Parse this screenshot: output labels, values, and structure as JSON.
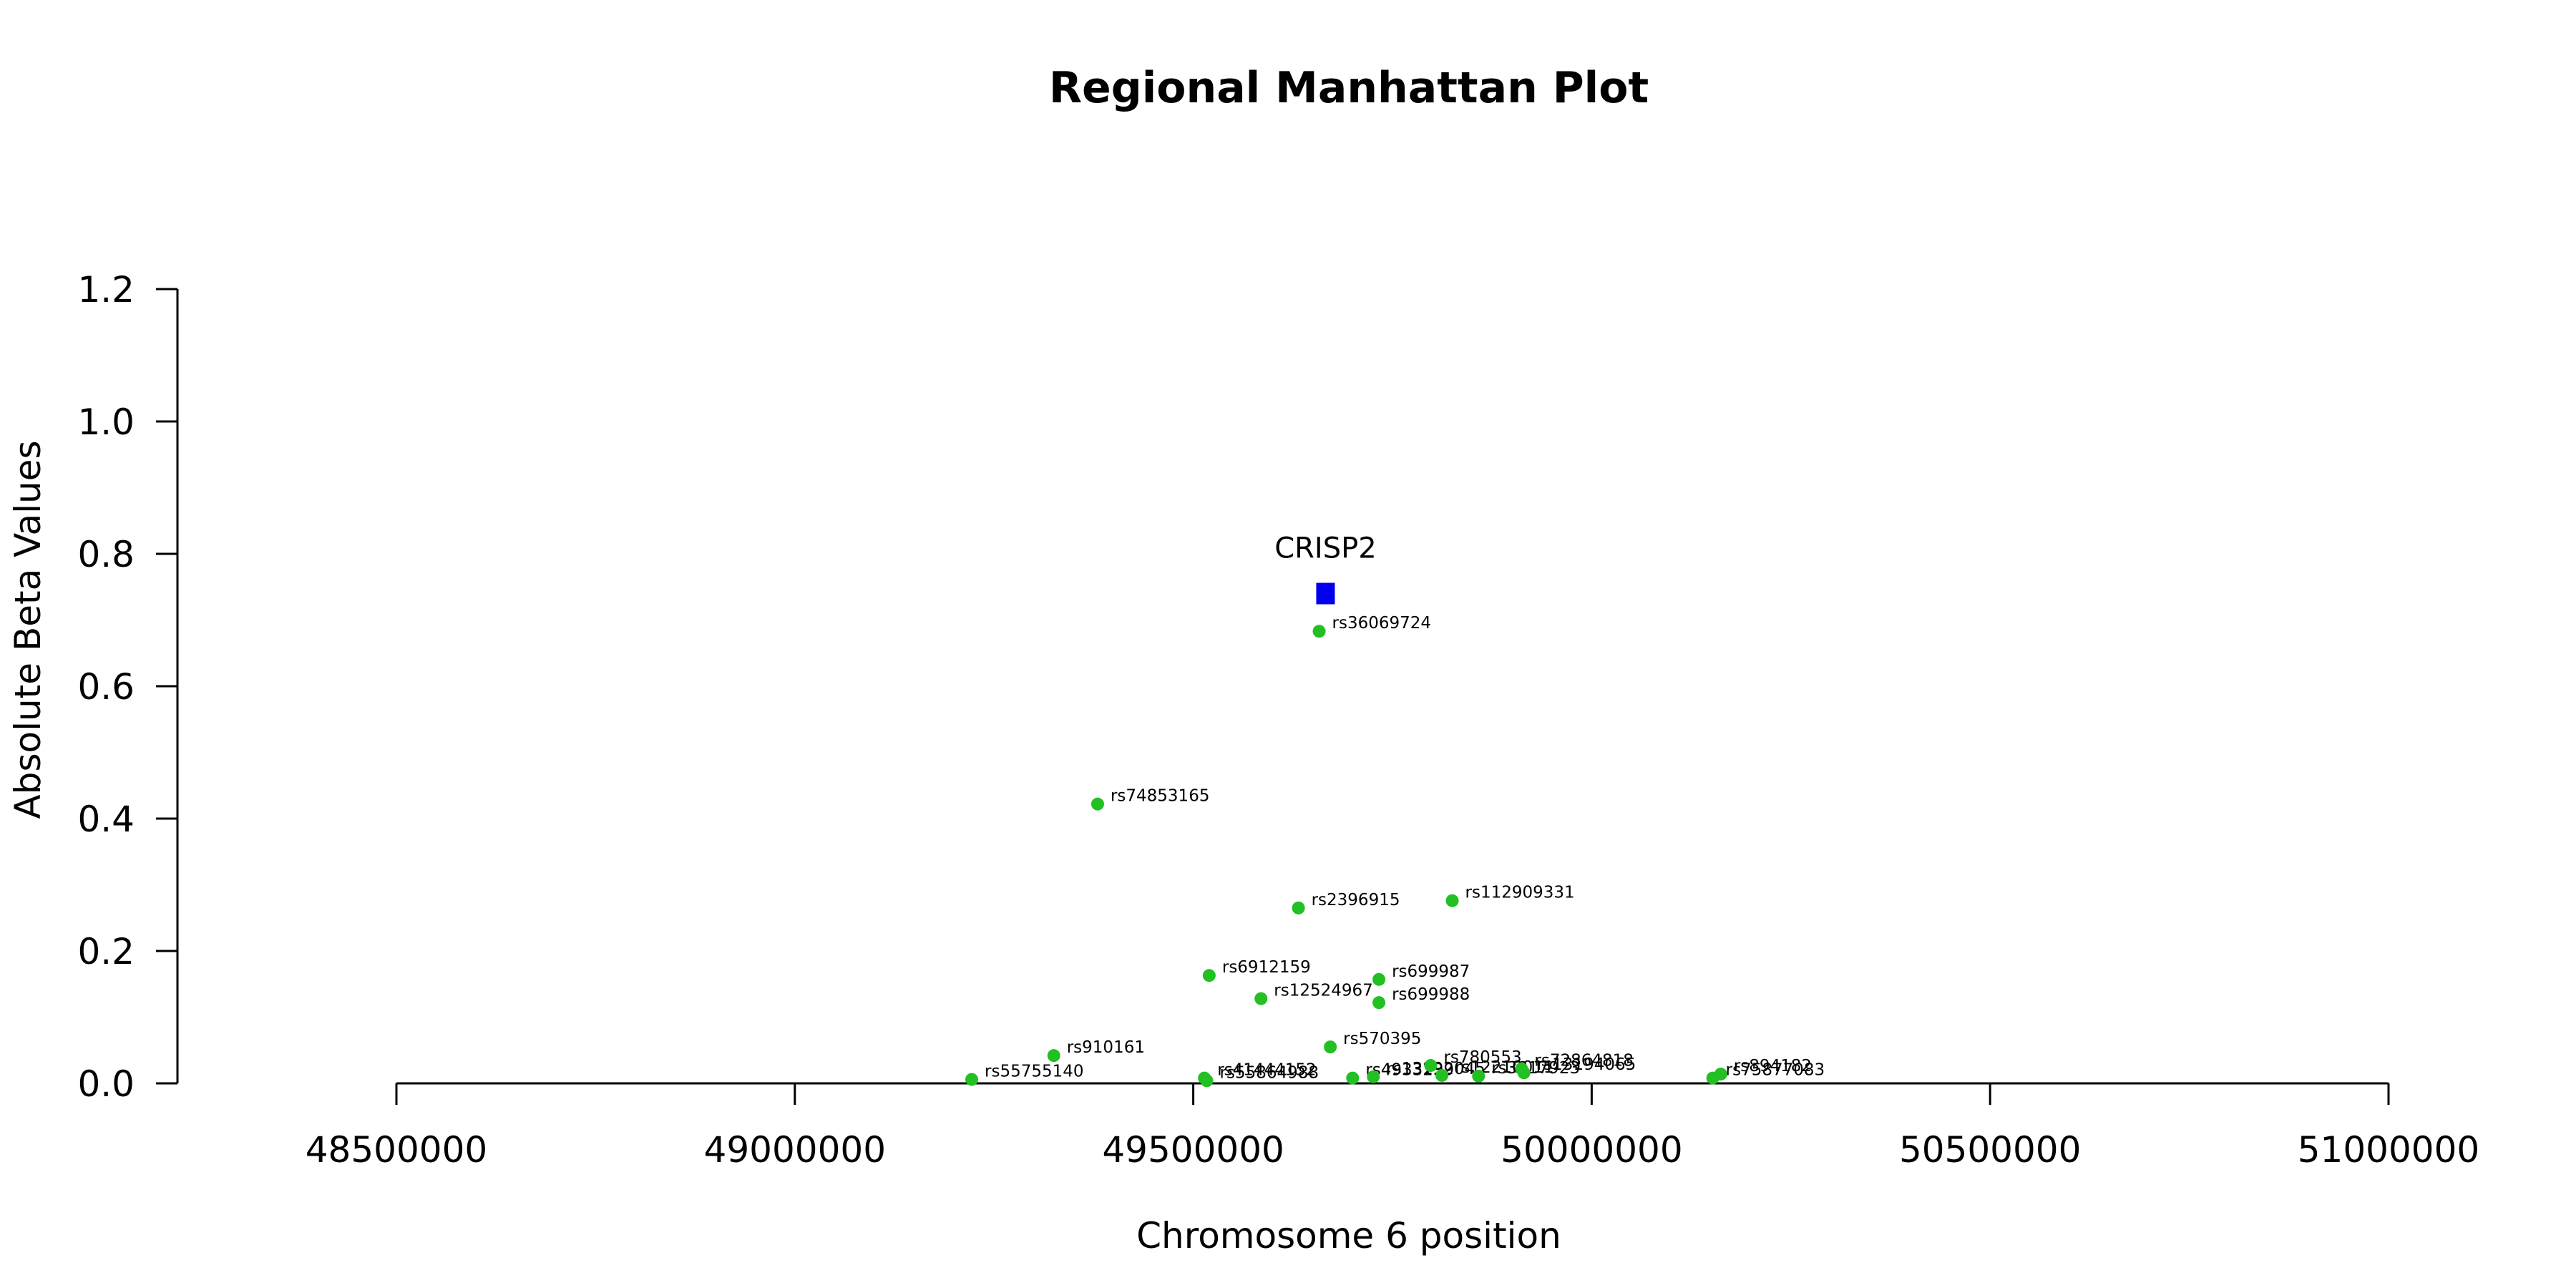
{
  "chart_data": {
    "type": "scatter",
    "title": "Regional Manhattan Plot",
    "xlabel": "Chromosome 6 position",
    "ylabel": "Absolute Beta Values",
    "xlim": [
      48500000,
      51000000
    ],
    "ylim": [
      0,
      1.2
    ],
    "x_ticks": [
      "48500000",
      "49000000",
      "49500000",
      "50000000",
      "50500000",
      "51000000"
    ],
    "y_ticks": [
      "0.0",
      "0.2",
      "0.4",
      "0.6",
      "0.8",
      "1.0",
      "1.2"
    ],
    "grid": false,
    "colors": {
      "snp": "#22c022",
      "gene": "#0000ee",
      "axis": "#000000"
    },
    "gene": {
      "name": "CRISP2",
      "x": 49666000,
      "y": 0.74,
      "marker": "square"
    },
    "series": [
      {
        "points": [
          {
            "label": "rs36069724",
            "x": 49658000,
            "y": 0.683
          },
          {
            "label": "rs74853165",
            "x": 49380000,
            "y": 0.422
          },
          {
            "label": "rs2396915",
            "x": 49632000,
            "y": 0.265
          },
          {
            "label": "rs112909331",
            "x": 49825000,
            "y": 0.276
          },
          {
            "label": "rs6912159",
            "x": 49520000,
            "y": 0.163
          },
          {
            "label": "rs699987",
            "x": 49733000,
            "y": 0.157
          },
          {
            "label": "rs12524967",
            "x": 49585000,
            "y": 0.128
          },
          {
            "label": "rs699988",
            "x": 49733000,
            "y": 0.122
          },
          {
            "label": "rs570395",
            "x": 49672000,
            "y": 0.055
          },
          {
            "label": "rs910161",
            "x": 49325000,
            "y": 0.042
          },
          {
            "label": "rs55755140",
            "x": 49222000,
            "y": 0.006
          },
          {
            "label": "rs41444152",
            "x": 49514000,
            "y": 0.008
          },
          {
            "label": "rs55864988",
            "x": 49517000,
            "y": 0.004
          },
          {
            "label": "rs4933239",
            "x": 49700000,
            "y": 0.008
          },
          {
            "label": "rs13192045",
            "x": 49726000,
            "y": 0.01
          },
          {
            "label": "rs780553",
            "x": 49798000,
            "y": 0.027
          },
          {
            "label": "rs12210011",
            "x": 49812000,
            "y": 0.012
          },
          {
            "label": "rs3817923",
            "x": 49858000,
            "y": 0.011
          },
          {
            "label": "rs72864818",
            "x": 49912000,
            "y": 0.022
          },
          {
            "label": "rs13194065",
            "x": 49915000,
            "y": 0.016
          },
          {
            "label": "rs894182",
            "x": 50162000,
            "y": 0.014
          },
          {
            "label": "rs75877083",
            "x": 50152000,
            "y": 0.008
          }
        ]
      }
    ]
  }
}
